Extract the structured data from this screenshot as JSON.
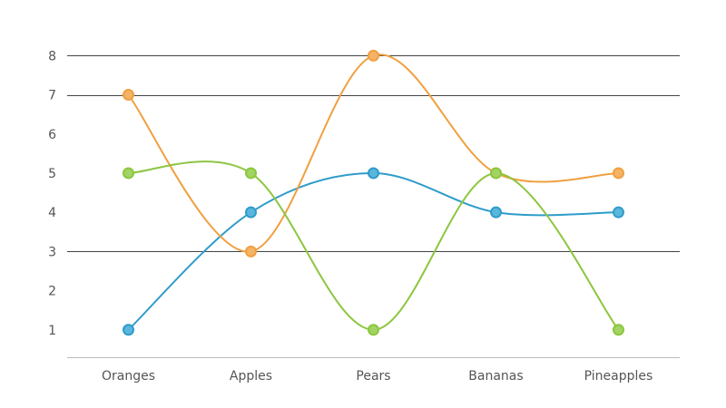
{
  "chart_data": {
    "type": "line",
    "categories": [
      "Oranges",
      "Apples",
      "Pears",
      "Bananas",
      "Pineapples"
    ],
    "series": [
      {
        "color": "#2e9cca",
        "fill": "#5bb6dc",
        "values": [
          1,
          4,
          5,
          4,
          4
        ]
      },
      {
        "color": "#f0a040",
        "fill": "#f4b468",
        "values": [
          7,
          3,
          8,
          5,
          5
        ]
      },
      {
        "color": "#8cc63f",
        "fill": "#a2d465",
        "values": [
          5,
          5,
          1,
          5,
          1
        ]
      }
    ],
    "y_ticks": [
      "1",
      "2",
      "3",
      "4",
      "5",
      "6",
      "7",
      "8"
    ],
    "y_gridlines": [
      3,
      7,
      8
    ],
    "ylim": [
      0.3,
      8
    ],
    "curve": "smooth",
    "legend": "none"
  }
}
